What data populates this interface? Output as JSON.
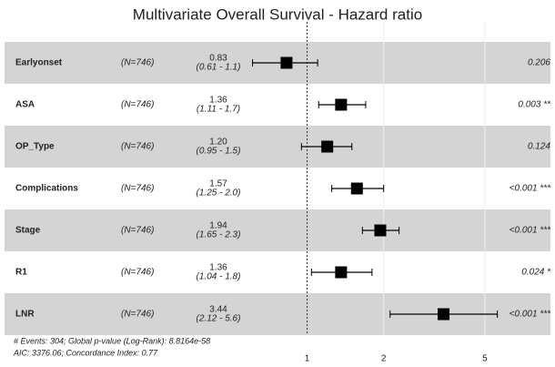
{
  "chart_data": {
    "type": "forest",
    "title": "Multivariate Overall Survival - Hazard ratio",
    "categories": [
      "Earlyonset",
      "ASA",
      "OP_Type",
      "Complications",
      "Stage",
      "R1",
      "LNR"
    ],
    "n_labels": [
      "(N=746)",
      "(N=746)",
      "(N=746)",
      "(N=746)",
      "(N=746)",
      "(N=746)",
      "(N=746)"
    ],
    "values": [
      0.83,
      1.36,
      1.2,
      1.57,
      1.94,
      1.36,
      3.44
    ],
    "value_labels": [
      "0.83",
      "1.36",
      "1.20",
      "1.57",
      "1.94",
      "1.36",
      "3.44"
    ],
    "lower": [
      0.61,
      1.11,
      0.95,
      1.25,
      1.65,
      1.04,
      2.12
    ],
    "upper": [
      1.1,
      1.7,
      1.5,
      2.0,
      2.3,
      1.8,
      5.6
    ],
    "ci_labels": [
      "(0.61 - 1.1)",
      "(1.11 - 1.7)",
      "(0.95 - 1.5)",
      "(1.25 - 2.0)",
      "(1.65 - 2.3)",
      "(1.04 - 1.8)",
      "(2.12 - 5.6)"
    ],
    "p_labels": [
      "0.206",
      "0.003 **",
      "0.124",
      "<0.001 ***",
      "<0.001 ***",
      "0.024 *",
      "<0.001 ***"
    ],
    "xlim": [
      0.55,
      6.0
    ],
    "xticks": [
      1,
      2,
      5
    ],
    "log_x": true,
    "color": "#000000",
    "footnotes": [
      "# Events: 304; Global p-value (Log-Rank): 8.8164e-58",
      "AIC: 3376.06; Concordance Index: 0.77"
    ]
  }
}
